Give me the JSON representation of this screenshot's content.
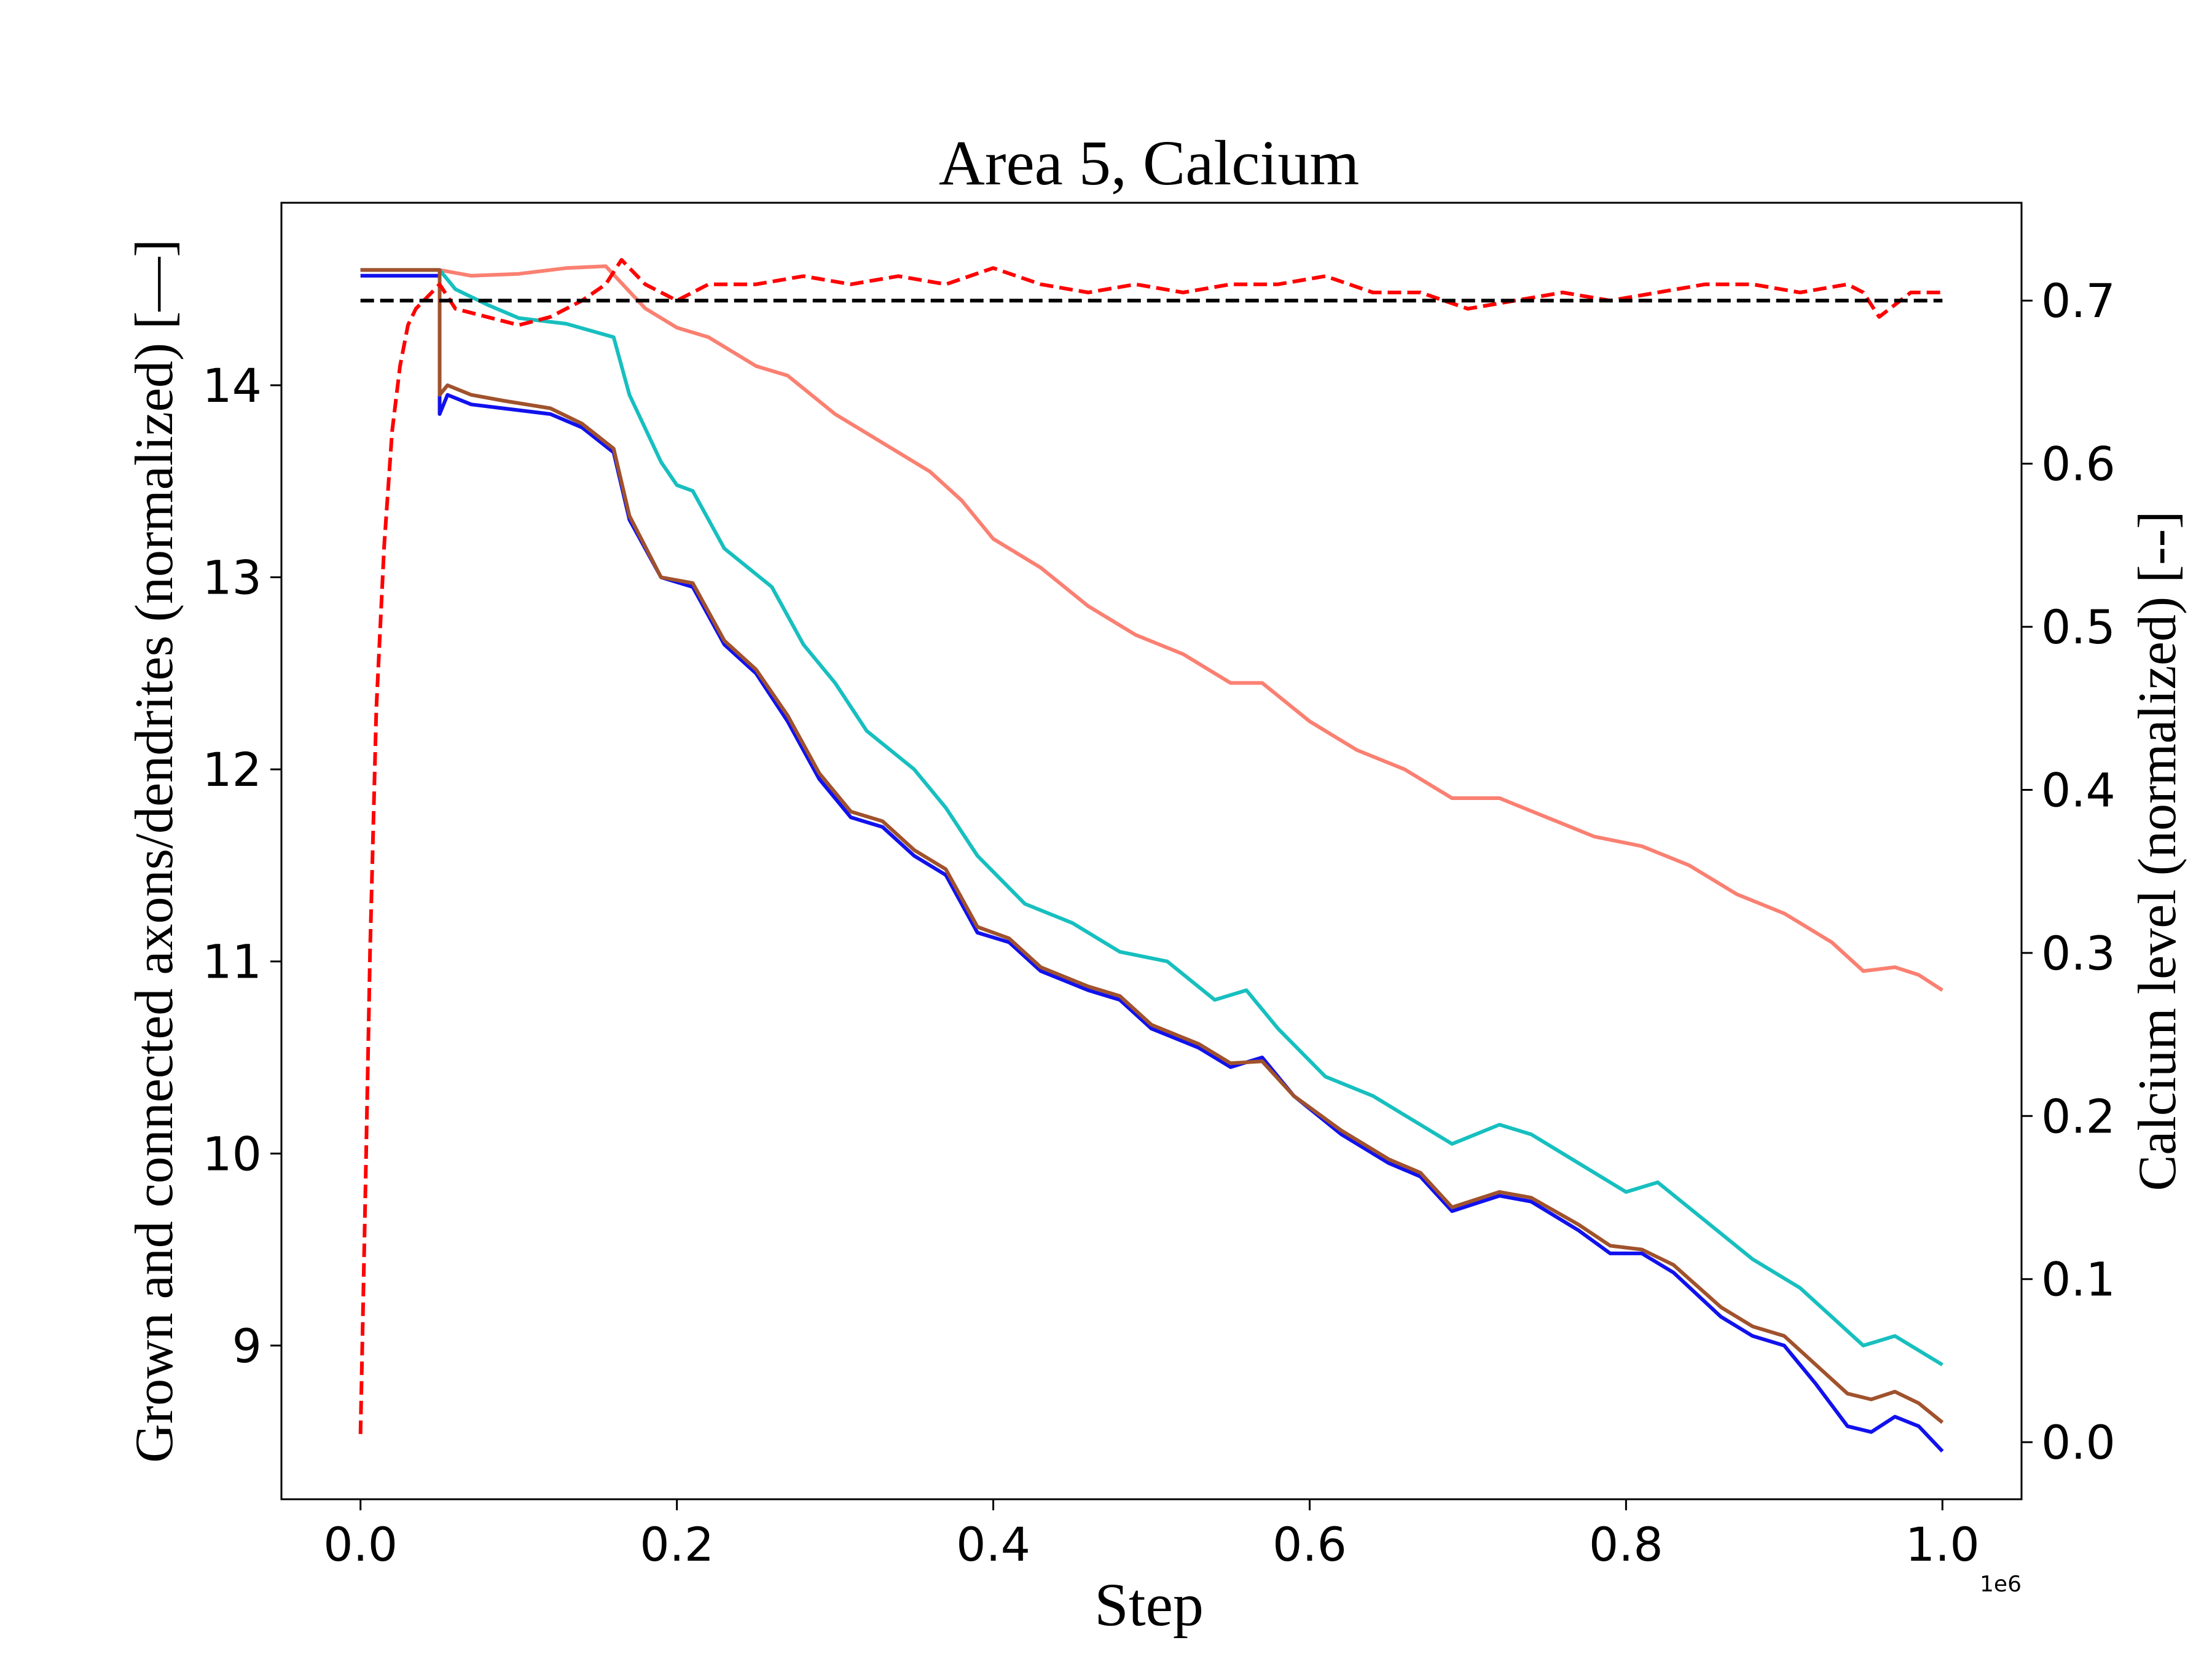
{
  "chart_data": {
    "type": "line",
    "title": "Area 5, Calcium",
    "xlabel": "Step",
    "ylabel_left": "Grown and connected axons/dendrites (normalized) [—]",
    "ylabel_right": "Calcium level (normalized) [--]",
    "x_offset_text": "1e6",
    "xlim": [
      -0.05,
      1.05
    ],
    "ylim_left": [
      8.2,
      14.95
    ],
    "ylim_right": [
      -0.035,
      0.76
    ],
    "x_ticks": [
      0.0,
      0.2,
      0.4,
      0.6,
      0.8,
      1.0
    ],
    "x_tick_labels": [
      "0.0",
      "0.2",
      "0.4",
      "0.6",
      "0.8",
      "1.0"
    ],
    "y_ticks_left": [
      9,
      10,
      11,
      12,
      13,
      14
    ],
    "y_tick_labels_left": [
      "9",
      "10",
      "11",
      "12",
      "13",
      "14"
    ],
    "y_ticks_right": [
      0.0,
      0.1,
      0.2,
      0.3,
      0.4,
      0.5,
      0.6,
      0.7
    ],
    "y_tick_labels_right": [
      "0.0",
      "0.1",
      "0.2",
      "0.3",
      "0.4",
      "0.5",
      "0.6",
      "0.7"
    ],
    "grid": false,
    "legend": "none",
    "series": [
      {
        "axis": "left",
        "color": "#fa8072",
        "style": "solid",
        "x": [
          0,
          0.05,
          0.07,
          0.1,
          0.13,
          0.155,
          0.18,
          0.2,
          0.22,
          0.25,
          0.27,
          0.3,
          0.33,
          0.36,
          0.38,
          0.4,
          0.43,
          0.46,
          0.49,
          0.52,
          0.55,
          0.57,
          0.6,
          0.63,
          0.66,
          0.69,
          0.72,
          0.75,
          0.78,
          0.81,
          0.84,
          0.87,
          0.9,
          0.93,
          0.95,
          0.97,
          0.985,
          1.0
        ],
        "y": [
          14.6,
          14.6,
          14.57,
          14.58,
          14.61,
          14.62,
          14.4,
          14.3,
          14.25,
          14.1,
          14.05,
          13.85,
          13.7,
          13.55,
          13.4,
          13.2,
          13.05,
          12.85,
          12.7,
          12.6,
          12.45,
          12.45,
          12.25,
          12.1,
          12.0,
          11.85,
          11.85,
          11.75,
          11.65,
          11.6,
          11.5,
          11.35,
          11.25,
          11.1,
          10.95,
          10.97,
          10.93,
          10.85
        ]
      },
      {
        "axis": "left",
        "color": "#17bfbf",
        "style": "solid",
        "x": [
          0,
          0.05,
          0.06,
          0.08,
          0.1,
          0.13,
          0.16,
          0.17,
          0.19,
          0.2,
          0.21,
          0.23,
          0.26,
          0.28,
          0.3,
          0.32,
          0.35,
          0.37,
          0.39,
          0.42,
          0.45,
          0.48,
          0.51,
          0.54,
          0.56,
          0.58,
          0.61,
          0.64,
          0.67,
          0.69,
          0.72,
          0.74,
          0.77,
          0.8,
          0.82,
          0.85,
          0.88,
          0.91,
          0.93,
          0.95,
          0.97,
          1.0
        ],
        "y": [
          14.6,
          14.6,
          14.5,
          14.42,
          14.35,
          14.32,
          14.25,
          13.95,
          13.6,
          13.48,
          13.45,
          13.15,
          12.95,
          12.65,
          12.45,
          12.2,
          12.0,
          11.8,
          11.55,
          11.3,
          11.2,
          11.05,
          11.0,
          10.8,
          10.85,
          10.65,
          10.4,
          10.3,
          10.15,
          10.05,
          10.15,
          10.1,
          9.95,
          9.8,
          9.85,
          9.65,
          9.45,
          9.3,
          9.15,
          9.0,
          9.05,
          8.9
        ]
      },
      {
        "axis": "left",
        "color": "#1111ee",
        "style": "solid",
        "x": [
          0,
          0.05,
          0.05,
          0.055,
          0.07,
          0.09,
          0.12,
          0.14,
          0.16,
          0.17,
          0.19,
          0.21,
          0.23,
          0.25,
          0.27,
          0.29,
          0.31,
          0.33,
          0.35,
          0.37,
          0.39,
          0.41,
          0.43,
          0.46,
          0.48,
          0.5,
          0.53,
          0.55,
          0.57,
          0.59,
          0.62,
          0.65,
          0.67,
          0.69,
          0.72,
          0.74,
          0.77,
          0.79,
          0.81,
          0.83,
          0.86,
          0.88,
          0.9,
          0.92,
          0.94,
          0.955,
          0.97,
          0.985,
          1.0
        ],
        "y": [
          14.57,
          14.57,
          13.85,
          13.95,
          13.9,
          13.88,
          13.85,
          13.78,
          13.65,
          13.3,
          13.0,
          12.95,
          12.65,
          12.5,
          12.25,
          11.95,
          11.75,
          11.7,
          11.55,
          11.45,
          11.15,
          11.1,
          10.95,
          10.85,
          10.8,
          10.65,
          10.55,
          10.45,
          10.5,
          10.3,
          10.1,
          9.95,
          9.88,
          9.7,
          9.78,
          9.75,
          9.6,
          9.48,
          9.48,
          9.38,
          9.15,
          9.05,
          9.0,
          8.8,
          8.58,
          8.55,
          8.63,
          8.58,
          8.45
        ]
      },
      {
        "axis": "left",
        "color": "#a0522d",
        "style": "solid",
        "x": [
          0,
          0.05,
          0.05,
          0.055,
          0.07,
          0.09,
          0.12,
          0.14,
          0.16,
          0.17,
          0.19,
          0.21,
          0.23,
          0.25,
          0.27,
          0.29,
          0.31,
          0.33,
          0.35,
          0.37,
          0.39,
          0.41,
          0.43,
          0.46,
          0.48,
          0.5,
          0.53,
          0.55,
          0.57,
          0.59,
          0.62,
          0.65,
          0.67,
          0.69,
          0.72,
          0.74,
          0.77,
          0.79,
          0.81,
          0.83,
          0.86,
          0.88,
          0.9,
          0.92,
          0.94,
          0.955,
          0.97,
          0.985,
          1.0
        ],
        "y": [
          14.6,
          14.6,
          13.95,
          14.0,
          13.95,
          13.92,
          13.88,
          13.8,
          13.67,
          13.32,
          13.0,
          12.97,
          12.67,
          12.52,
          12.28,
          11.98,
          11.78,
          11.73,
          11.58,
          11.48,
          11.18,
          11.12,
          10.97,
          10.87,
          10.82,
          10.67,
          10.57,
          10.47,
          10.48,
          10.3,
          10.12,
          9.97,
          9.9,
          9.72,
          9.8,
          9.77,
          9.63,
          9.52,
          9.5,
          9.42,
          9.2,
          9.1,
          9.05,
          8.9,
          8.75,
          8.72,
          8.76,
          8.7,
          8.6
        ]
      },
      {
        "axis": "right",
        "color": "#ff0000",
        "style": "dashed",
        "x": [
          0,
          0.003,
          0.006,
          0.01,
          0.015,
          0.02,
          0.025,
          0.03,
          0.035,
          0.04,
          0.05,
          0.06,
          0.08,
          0.1,
          0.12,
          0.14,
          0.155,
          0.165,
          0.18,
          0.2,
          0.22,
          0.25,
          0.28,
          0.31,
          0.34,
          0.37,
          0.4,
          0.43,
          0.46,
          0.49,
          0.52,
          0.55,
          0.58,
          0.61,
          0.64,
          0.67,
          0.7,
          0.73,
          0.76,
          0.79,
          0.82,
          0.85,
          0.88,
          0.91,
          0.94,
          0.95,
          0.96,
          0.98,
          1.0
        ],
        "y": [
          0.005,
          0.15,
          0.3,
          0.45,
          0.55,
          0.62,
          0.66,
          0.685,
          0.695,
          0.7,
          0.71,
          0.695,
          0.69,
          0.685,
          0.69,
          0.7,
          0.71,
          0.725,
          0.71,
          0.7,
          0.71,
          0.71,
          0.715,
          0.71,
          0.715,
          0.71,
          0.72,
          0.71,
          0.705,
          0.71,
          0.705,
          0.71,
          0.71,
          0.715,
          0.705,
          0.705,
          0.695,
          0.7,
          0.705,
          0.7,
          0.705,
          0.71,
          0.71,
          0.705,
          0.71,
          0.705,
          0.69,
          0.705,
          0.705
        ]
      },
      {
        "axis": "right",
        "color": "#000000",
        "style": "dashed",
        "x": [
          0,
          1.0
        ],
        "y": [
          0.7,
          0.7
        ]
      }
    ]
  }
}
